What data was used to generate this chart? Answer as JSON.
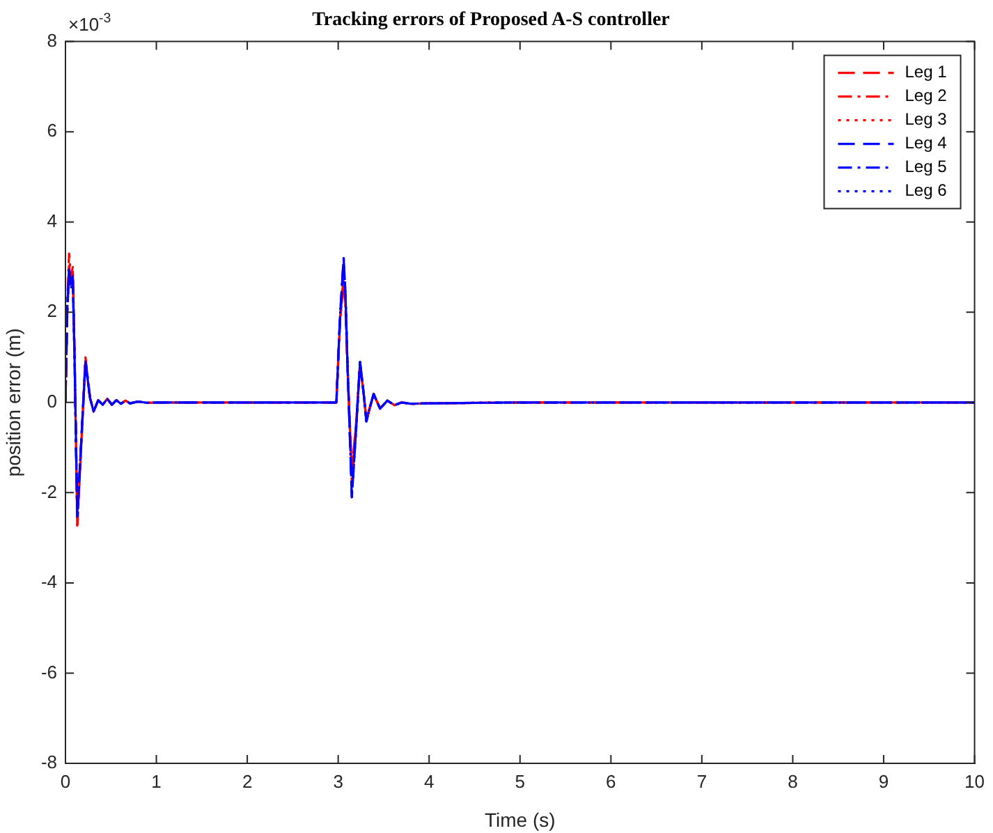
{
  "chart_data": {
    "type": "line",
    "title": "Tracking errors of Proposed A-S controller",
    "xlabel": "Time (s)",
    "ylabel": "position error (m)",
    "annotations": [
      "×10$^{-3}$"
    ],
    "x": [
      0,
      0.02,
      0.04,
      0.06,
      0.08,
      0.1,
      0.13,
      0.17,
      0.22,
      0.27,
      0.31,
      0.36,
      0.41,
      0.46,
      0.51,
      0.56,
      0.61,
      0.66,
      0.71,
      0.8,
      0.9,
      1.0,
      1.5,
      2.0,
      2.5,
      2.98,
      3.02,
      3.06,
      3.08,
      3.1,
      3.15,
      3.2,
      3.24,
      3.28,
      3.31,
      3.35,
      3.39,
      3.46,
      3.54,
      3.62,
      3.7,
      3.8,
      4.0,
      5,
      6,
      7,
      8,
      9,
      10
    ],
    "xlim": [
      0,
      10
    ],
    "xticks": [
      0,
      1,
      2,
      3,
      4,
      5,
      6,
      7,
      8,
      9,
      10
    ],
    "ylim": [
      -8,
      8
    ],
    "yticks": [
      -8,
      -6,
      -4,
      -2,
      0,
      2,
      4,
      6,
      8
    ],
    "grid": false,
    "legend": "top right",
    "marker": "none",
    "series": [
      {
        "name": "Leg 1",
        "color": "#ff0000",
        "line_style": "dashed",
        "values": [
          0,
          2.1,
          3.0,
          2.7,
          2.9,
          1.1,
          -2.7,
          -1.1,
          0.95,
          0.1,
          -0.2,
          0.05,
          -0.05,
          0.08,
          -0.05,
          0.05,
          -0.03,
          0.04,
          -0.02,
          0.02,
          -0.01,
          0,
          0,
          0,
          0,
          0,
          1.8,
          2.8,
          2.2,
          0.9,
          -1.5,
          -0.4,
          0.85,
          0.2,
          -0.4,
          -0.1,
          0.18,
          -0.13,
          0.04,
          -0.06,
          0,
          -0.03,
          -0.02,
          0,
          0,
          0,
          0,
          0,
          0
        ]
      },
      {
        "name": "Leg 2",
        "color": "#ff0000",
        "line_style": "dashdot",
        "values": [
          0,
          2.2,
          3.3,
          2.8,
          3.0,
          1.1,
          -2.8,
          -1.1,
          1.0,
          0.1,
          -0.2,
          0.05,
          -0.05,
          0.08,
          -0.05,
          0.05,
          -0.03,
          0.04,
          -0.02,
          0.02,
          -0.01,
          0,
          0,
          0,
          0,
          0,
          1.8,
          2.7,
          2.1,
          0.9,
          -1.6,
          -0.4,
          0.85,
          0.2,
          -0.4,
          -0.1,
          0.18,
          -0.13,
          0.04,
          -0.06,
          0,
          -0.03,
          -0.02,
          0,
          0,
          0,
          0,
          0,
          0
        ]
      },
      {
        "name": "Leg 3",
        "color": "#ff0000",
        "line_style": "dotted",
        "values": [
          0,
          2.0,
          3.1,
          2.6,
          2.9,
          1.0,
          -2.6,
          -1.0,
          0.95,
          0.1,
          -0.2,
          0.05,
          -0.05,
          0.08,
          -0.05,
          0.05,
          -0.03,
          0.04,
          -0.02,
          0.02,
          -0.01,
          0,
          0,
          0,
          0,
          0,
          1.8,
          2.8,
          2.2,
          0.9,
          -1.8,
          -0.4,
          0.9,
          0.2,
          -0.4,
          -0.1,
          0.18,
          -0.13,
          0.04,
          -0.06,
          0,
          -0.03,
          -0.02,
          0,
          0,
          0,
          0,
          0,
          0
        ]
      },
      {
        "name": "Leg 4",
        "color": "#0000ff",
        "line_style": "dashed",
        "values": [
          0,
          2.0,
          2.9,
          2.6,
          2.8,
          1.0,
          -2.5,
          -1.0,
          0.9,
          0.1,
          -0.2,
          0.05,
          -0.05,
          0.08,
          -0.05,
          0.05,
          -0.03,
          0.04,
          -0.02,
          0.02,
          -0.01,
          0,
          0,
          0,
          0,
          0,
          1.9,
          3.2,
          2.4,
          1.0,
          -2.1,
          -0.5,
          0.9,
          0.2,
          -0.42,
          -0.1,
          0.19,
          -0.14,
          0.04,
          -0.06,
          0,
          -0.03,
          -0.02,
          0,
          0,
          0,
          0,
          0,
          0
        ]
      },
      {
        "name": "Leg 5",
        "color": "#0000ff",
        "line_style": "dashdot",
        "values": [
          0,
          2.1,
          3.0,
          2.6,
          2.8,
          1.0,
          -2.6,
          -1.0,
          0.9,
          0.1,
          -0.2,
          0.05,
          -0.05,
          0.08,
          -0.05,
          0.05,
          -0.03,
          0.04,
          -0.02,
          0.02,
          -0.01,
          0,
          0,
          0,
          0,
          0,
          1.9,
          3.2,
          2.4,
          1.0,
          -2.1,
          -0.5,
          0.9,
          0.2,
          -0.42,
          -0.1,
          0.19,
          -0.14,
          0.04,
          -0.06,
          0,
          -0.03,
          -0.02,
          0,
          0,
          0,
          0,
          0,
          0
        ]
      },
      {
        "name": "Leg 6",
        "color": "#0000ff",
        "line_style": "dotted",
        "values": [
          0,
          2.0,
          2.9,
          2.5,
          2.8,
          1.0,
          -2.5,
          -1.0,
          0.9,
          0.1,
          -0.2,
          0.05,
          -0.05,
          0.08,
          -0.05,
          0.05,
          -0.03,
          0.04,
          -0.02,
          0.02,
          -0.01,
          0,
          0,
          0,
          0,
          0,
          1.9,
          3.1,
          2.4,
          1.0,
          -2.0,
          -0.5,
          0.9,
          0.2,
          -0.42,
          -0.1,
          0.19,
          -0.14,
          0.04,
          -0.06,
          0,
          -0.03,
          -0.02,
          0,
          0,
          0,
          0,
          0,
          0
        ]
      }
    ]
  }
}
